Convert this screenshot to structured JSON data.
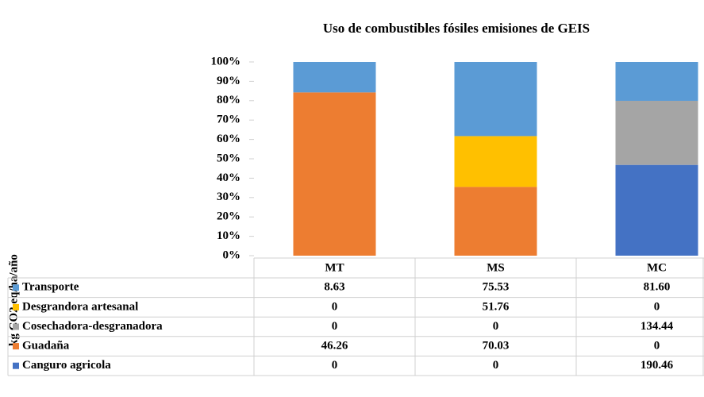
{
  "chart_data": {
    "type": "stacked_bar_100",
    "title": "Uso de combustibles fósiles emisiones de GEIS",
    "y_label": "kg CO2 eq/ha/año",
    "categories": [
      "MT",
      "MS",
      "MC"
    ],
    "series": [
      {
        "name": "Transporte",
        "color": "#5b9bd5",
        "values": [
          8.63,
          75.53,
          81.6
        ],
        "value_labels": [
          "8.63",
          "75.53",
          "81.60"
        ]
      },
      {
        "name": "Desgrandora artesanal",
        "color": "#ffc000",
        "values": [
          0,
          51.76,
          0
        ],
        "value_labels": [
          "0",
          "51.76",
          "0"
        ]
      },
      {
        "name": "Cosechadora-desgranadora",
        "color": "#a5a5a5",
        "values": [
          0,
          0,
          134.44
        ],
        "value_labels": [
          "0",
          "0",
          "134.44"
        ]
      },
      {
        "name": "Guadaña",
        "color": "#ed7d31",
        "values": [
          46.26,
          70.03,
          0
        ],
        "value_labels": [
          "46.26",
          "70.03",
          "0"
        ]
      },
      {
        "name": "Canguro agricola",
        "color": "#4472c4",
        "values": [
          0,
          0,
          190.46
        ],
        "value_labels": [
          "0",
          "0",
          "190.46"
        ]
      }
    ],
    "ylim": [
      0,
      100
    ],
    "yticks": [
      {
        "value": 0,
        "label": "0%"
      },
      {
        "value": 10,
        "label": "10%"
      },
      {
        "value": 20,
        "label": "20%"
      },
      {
        "value": 30,
        "label": "30%"
      },
      {
        "value": 40,
        "label": "40%"
      },
      {
        "value": 50,
        "label": "50%"
      },
      {
        "value": 60,
        "label": "60%"
      },
      {
        "value": 70,
        "label": "70%"
      },
      {
        "value": 80,
        "label": "80%"
      },
      {
        "value": 90,
        "label": "90%"
      },
      {
        "value": 100,
        "label": "100%"
      }
    ]
  }
}
